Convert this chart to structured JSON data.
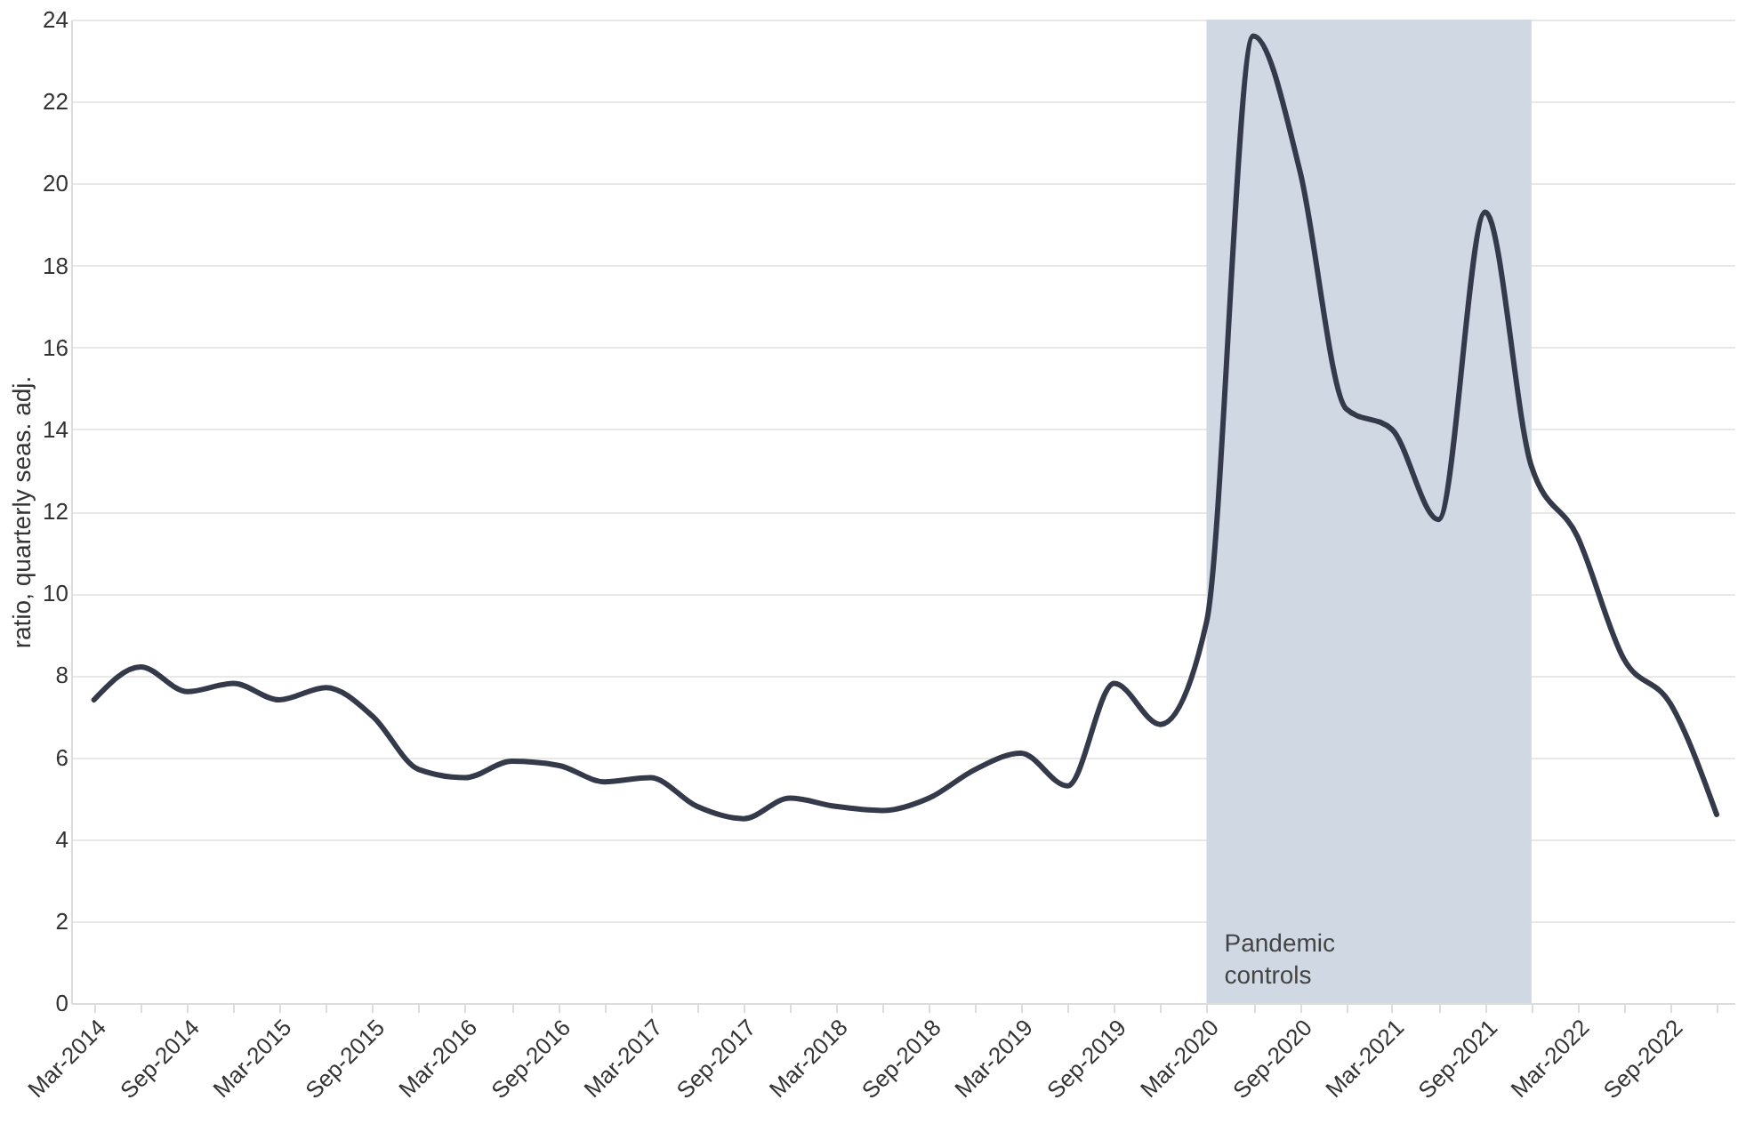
{
  "chart_data": {
    "type": "line",
    "ylabel": "ratio, quarterly seas. adj.",
    "x": [
      "2014-03",
      "2014-06",
      "2014-09",
      "2014-12",
      "2015-03",
      "2015-06",
      "2015-09",
      "2015-12",
      "2016-03",
      "2016-06",
      "2016-09",
      "2016-12",
      "2017-03",
      "2017-06",
      "2017-09",
      "2017-12",
      "2018-03",
      "2018-06",
      "2018-09",
      "2018-12",
      "2019-03",
      "2019-06",
      "2019-09",
      "2019-12",
      "2020-03",
      "2020-06",
      "2020-09",
      "2020-12",
      "2021-03",
      "2021-06",
      "2021-09",
      "2021-12",
      "2022-03",
      "2022-06",
      "2022-09",
      "2022-12"
    ],
    "series": [
      {
        "color": "#343a4a",
        "values": [
          7.4,
          8.2,
          7.6,
          7.8,
          7.4,
          7.7,
          7.0,
          5.7,
          5.5,
          5.9,
          5.8,
          5.4,
          5.5,
          4.8,
          4.5,
          5.0,
          4.8,
          4.7,
          5.0,
          5.7,
          6.1,
          5.3,
          7.8,
          6.8,
          9.3,
          23.6,
          20.3,
          14.5,
          14.0,
          11.8,
          19.3,
          13.1,
          11.4,
          8.4,
          7.3,
          4.6
        ]
      }
    ],
    "xlim": [
      "2014-01-15",
      "2023-01-05"
    ],
    "xticks": [
      {
        "value": "2014-03",
        "label": "Mar-2014"
      },
      {
        "value": "2014-06",
        "label": null
      },
      {
        "value": "2014-09",
        "label": "Sep-2014"
      },
      {
        "value": "2014-12",
        "label": null
      },
      {
        "value": "2015-03",
        "label": "Mar-2015"
      },
      {
        "value": "2015-06",
        "label": null
      },
      {
        "value": "2015-09",
        "label": "Sep-2015"
      },
      {
        "value": "2015-12",
        "label": null
      },
      {
        "value": "2016-03",
        "label": "Mar-2016"
      },
      {
        "value": "2016-06",
        "label": null
      },
      {
        "value": "2016-09",
        "label": "Sep-2016"
      },
      {
        "value": "2016-12",
        "label": null
      },
      {
        "value": "2017-03",
        "label": "Mar-2017"
      },
      {
        "value": "2017-06",
        "label": null
      },
      {
        "value": "2017-09",
        "label": "Sep-2017"
      },
      {
        "value": "2017-12",
        "label": null
      },
      {
        "value": "2018-03",
        "label": "Mar-2018"
      },
      {
        "value": "2018-06",
        "label": null
      },
      {
        "value": "2018-09",
        "label": "Sep-2018"
      },
      {
        "value": "2018-12",
        "label": null
      },
      {
        "value": "2019-03",
        "label": "Mar-2019"
      },
      {
        "value": "2019-06",
        "label": null
      },
      {
        "value": "2019-09",
        "label": "Sep-2019"
      },
      {
        "value": "2019-12",
        "label": null
      },
      {
        "value": "2020-03",
        "label": "Mar-2020"
      },
      {
        "value": "2020-06",
        "label": null
      },
      {
        "value": "2020-09",
        "label": "Sep-2020"
      },
      {
        "value": "2020-12",
        "label": null
      },
      {
        "value": "2021-03",
        "label": "Mar-2021"
      },
      {
        "value": "2021-06",
        "label": null
      },
      {
        "value": "2021-09",
        "label": "Sep-2021"
      },
      {
        "value": "2021-12",
        "label": null
      },
      {
        "value": "2022-03",
        "label": "Mar-2022"
      },
      {
        "value": "2022-06",
        "label": null
      },
      {
        "value": "2022-09",
        "label": "Sep-2022"
      },
      {
        "value": "2022-12",
        "label": null
      }
    ],
    "ylim": [
      0,
      24
    ],
    "yticks": [
      0,
      2,
      4,
      6,
      8,
      10,
      12,
      14,
      16,
      18,
      20,
      22,
      24
    ],
    "grid": "y",
    "marker": "none",
    "line_style": "solid",
    "bands": [
      {
        "axis": "x",
        "from": "2020-03",
        "to": "2021-12",
        "label": "Pandemic controls",
        "color": "#cfd8e3"
      }
    ]
  }
}
